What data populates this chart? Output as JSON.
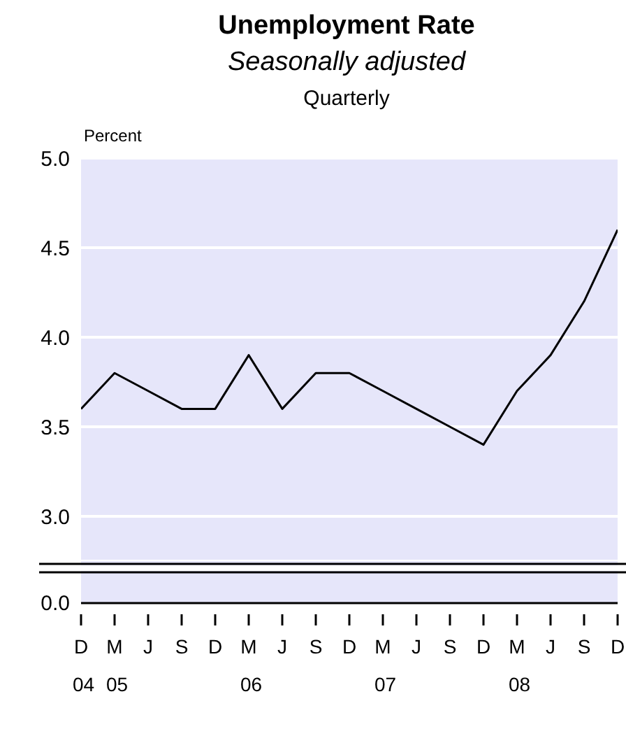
{
  "chart_data": {
    "type": "line",
    "title": "Unemployment Rate",
    "subtitle": "Seasonally adjusted",
    "annotations": [
      "Quarterly",
      "0.0"
    ],
    "ylabel": "Percent",
    "categories": [
      "D\n04",
      "M\n05",
      "J",
      "S",
      "D",
      "M\n06",
      "J",
      "S",
      "D",
      "M\n07",
      "J",
      "S",
      "D",
      "M\n08",
      "J",
      "S",
      "D"
    ],
    "series": [
      {
        "color": "#000000",
        "values": [
          3.6,
          3.8,
          3.7,
          3.6,
          3.6,
          3.9,
          3.6,
          3.8,
          3.8,
          3.7,
          3.6,
          3.5,
          3.4,
          3.7,
          3.9,
          4.2,
          4.6
        ]
      }
    ],
    "ylim": [
      2.75,
      5.0
    ],
    "yticks": [
      {
        "value": 3,
        "label": "3.0"
      },
      {
        "value": 3.5,
        "label": "3.5"
      },
      {
        "value": 4,
        "label": "4.0"
      },
      {
        "value": 4.5,
        "label": "4.5"
      },
      {
        "value": 5,
        "label": "5.0"
      }
    ],
    "grid": "y",
    "marker": "none",
    "line_style": "solid",
    "legend": false
  }
}
